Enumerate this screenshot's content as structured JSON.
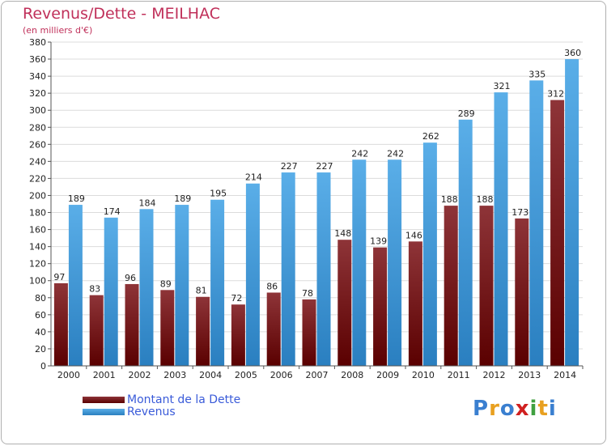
{
  "header": {
    "title": "Revenus/Dette - MEILHAC",
    "subtitle": "(en milliers d'€)"
  },
  "legend": {
    "items": [
      {
        "label": "Montant de la Dette",
        "color": "#7a1a1e"
      },
      {
        "label": "Revenus",
        "color": "#4a9fe0"
      }
    ]
  },
  "brand": {
    "letters": [
      {
        "ch": "P",
        "color": "#3a7fd0"
      },
      {
        "ch": "r",
        "color": "#e8a020"
      },
      {
        "ch": "o",
        "color": "#3a7fd0"
      },
      {
        "ch": "x",
        "color": "#d02020"
      },
      {
        "ch": "i",
        "color": "#40a040"
      },
      {
        "ch": "t",
        "color": "#e8a020"
      },
      {
        "ch": "i",
        "color": "#3a7fd0"
      }
    ]
  },
  "chart_data": {
    "type": "bar",
    "categories": [
      "2000",
      "2001",
      "2002",
      "2003",
      "2004",
      "2005",
      "2006",
      "2007",
      "2008",
      "2009",
      "2010",
      "2011",
      "2012",
      "2013",
      "2014"
    ],
    "series": [
      {
        "name": "Montant de la Dette",
        "values": [
          97,
          83,
          96,
          89,
          81,
          72,
          86,
          78,
          148,
          139,
          146,
          188,
          188,
          173,
          312
        ],
        "color": "#7a1a1e"
      },
      {
        "name": "Revenus",
        "values": [
          189,
          174,
          184,
          189,
          195,
          214,
          227,
          227,
          242,
          242,
          262,
          289,
          321,
          335,
          360
        ],
        "color": "#4a9fe0"
      }
    ],
    "ylim": [
      0,
      380
    ],
    "ytick_step": 20,
    "grid": true
  }
}
